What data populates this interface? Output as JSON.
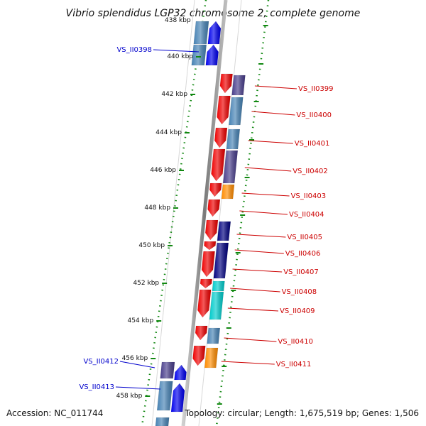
{
  "title": "Vibrio splendidus LGP32 chromosome 2, complete genome",
  "partial_top_label": "438 kbp",
  "footer": {
    "accession": "Accession: NC_011744",
    "topology": "Topology: circular; Length: 1,675,519 bp; Genes: 1,506"
  },
  "colors": {
    "right_label": "#cc0000",
    "left_label": "#0000cc",
    "backbone": "#888888",
    "tick": "#118811",
    "red": "#ee0000",
    "blue": "#0000ee",
    "steel": "#4682b4",
    "slate": "#483d8b",
    "orange": "#ff8c00",
    "navy": "#000080",
    "cyan": "#00cccc"
  },
  "ticks": [
    "440 kbp",
    "442 kbp",
    "444 kbp",
    "446 kbp",
    "448 kbp",
    "450 kbp",
    "452 kbp",
    "454 kbp",
    "456 kbp",
    "458 kbp"
  ],
  "genes_right": [
    "VS_II0399",
    "VS_II0400",
    "VS_II0401",
    "VS_II0402",
    "VS_II0403",
    "VS_II0404",
    "VS_II0405",
    "VS_II0406",
    "VS_II0407",
    "VS_II0408",
    "VS_II0409",
    "VS_II0410",
    "VS_II0411"
  ],
  "genes_left": [
    "VS_II0398",
    "VS_II0412",
    "VS_II0413"
  ],
  "features": [
    {
      "color": "steel",
      "strand": "outer",
      "dir": "none"
    },
    {
      "color": "blue",
      "strand": "inner",
      "dir": "up"
    },
    {
      "color": "steel",
      "strand": "outer",
      "dir": "none"
    },
    {
      "color": "blue",
      "strand": "inner",
      "dir": "up"
    },
    {
      "color": "red",
      "strand": "inner",
      "dir": "down"
    },
    {
      "color": "slate",
      "strand": "outer",
      "dir": "none"
    },
    {
      "color": "red",
      "strand": "inner",
      "dir": "down"
    },
    {
      "color": "steel",
      "strand": "outer",
      "dir": "none"
    },
    {
      "color": "red",
      "strand": "inner",
      "dir": "down"
    },
    {
      "color": "steel",
      "strand": "outer",
      "dir": "none"
    },
    {
      "color": "red",
      "strand": "inner",
      "dir": "down"
    },
    {
      "color": "slate",
      "strand": "outer",
      "dir": "none"
    },
    {
      "color": "red",
      "strand": "inner",
      "dir": "down"
    },
    {
      "color": "orange",
      "strand": "outer",
      "dir": "none"
    },
    {
      "color": "red",
      "strand": "inner",
      "dir": "down"
    },
    {
      "color": "red",
      "strand": "inner",
      "dir": "down"
    },
    {
      "color": "navy",
      "strand": "outer",
      "dir": "none"
    },
    {
      "color": "red",
      "strand": "inner",
      "dir": "down"
    },
    {
      "color": "red",
      "strand": "inner",
      "dir": "down"
    },
    {
      "color": "navy",
      "strand": "outer",
      "dir": "none"
    },
    {
      "color": "red",
      "strand": "inner",
      "dir": "down"
    },
    {
      "color": "cyan",
      "strand": "outer",
      "dir": "none"
    },
    {
      "color": "red",
      "strand": "inner",
      "dir": "down"
    },
    {
      "color": "cyan",
      "strand": "outer",
      "dir": "none"
    },
    {
      "color": "red",
      "strand": "inner",
      "dir": "down"
    },
    {
      "color": "steel",
      "strand": "outer",
      "dir": "none"
    },
    {
      "color": "red",
      "strand": "inner",
      "dir": "down"
    },
    {
      "color": "orange",
      "strand": "outer",
      "dir": "none"
    },
    {
      "color": "slate",
      "strand": "outer",
      "dir": "none"
    },
    {
      "color": "blue",
      "strand": "inner",
      "dir": "up"
    },
    {
      "color": "steel",
      "strand": "outer",
      "dir": "none"
    },
    {
      "color": "blue",
      "strand": "inner",
      "dir": "up"
    },
    {
      "color": "steel",
      "strand": "outer",
      "dir": "none"
    }
  ]
}
